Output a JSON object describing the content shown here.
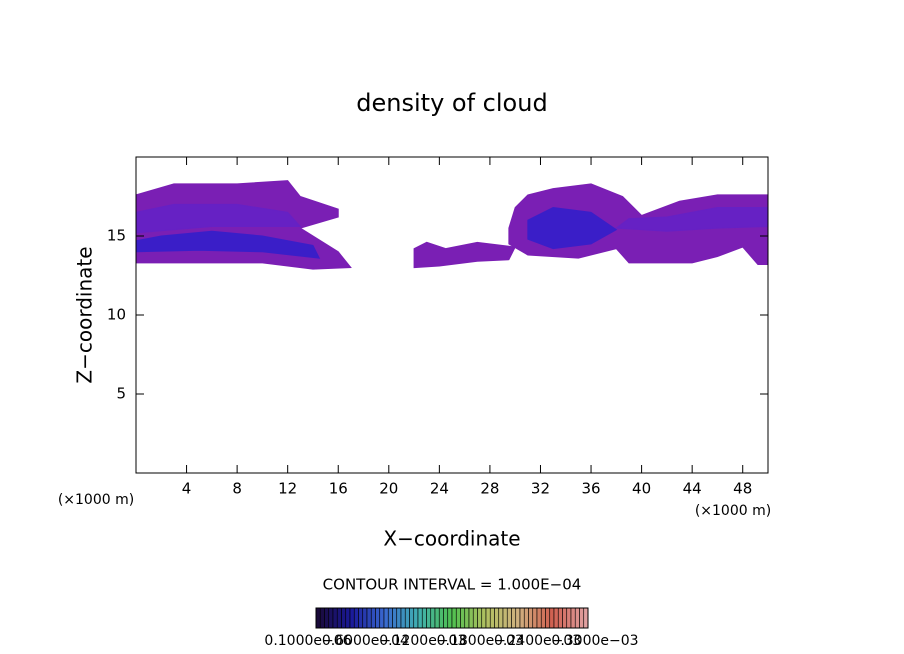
{
  "chart_data": {
    "type": "contour",
    "title": "density of cloud",
    "x_label": "X−coordinate",
    "y_label": "Z−coordinate",
    "x_unit": "(×1000 m)",
    "y_unit": "(×1000 m)",
    "xlim": [
      0,
      50
    ],
    "ylim": [
      0,
      20
    ],
    "xticks": [
      4,
      8,
      12,
      16,
      20,
      24,
      28,
      32,
      36,
      40,
      44,
      48
    ],
    "yticks": [
      5,
      10,
      15
    ],
    "contour_interval": "CONTOUR INTERVAL = 1.000E−04",
    "regions": [
      {
        "color": "#7a1fb4",
        "points": [
          [
            0,
            13.3
          ],
          [
            10,
            13.3
          ],
          [
            14,
            12.9
          ],
          [
            17,
            13
          ],
          [
            16,
            14
          ],
          [
            13,
            15.5
          ],
          [
            16,
            16.2
          ],
          [
            16,
            16.7
          ],
          [
            13,
            17.5
          ],
          [
            12,
            18.5
          ],
          [
            8,
            18.3
          ],
          [
            3,
            18.3
          ],
          [
            0,
            17.6
          ]
        ]
      },
      {
        "color": "#6621c4",
        "points": [
          [
            0,
            15.2
          ],
          [
            6,
            15.6
          ],
          [
            13,
            15.6
          ],
          [
            12,
            16.5
          ],
          [
            8,
            17
          ],
          [
            3,
            17
          ],
          [
            0,
            16.5
          ]
        ]
      },
      {
        "color": "#3a1ec8",
        "points": [
          [
            0,
            14
          ],
          [
            5,
            14.1
          ],
          [
            10,
            14
          ],
          [
            14.5,
            13.6
          ],
          [
            14,
            14.4
          ],
          [
            10,
            15
          ],
          [
            6,
            15.3
          ],
          [
            2,
            15
          ],
          [
            0,
            14.7
          ]
        ]
      },
      {
        "color": "#7a1fb4",
        "points": [
          [
            22,
            13
          ],
          [
            24,
            13.1
          ],
          [
            27,
            13.4
          ],
          [
            29.5,
            13.5
          ],
          [
            30,
            14.3
          ],
          [
            27,
            14.6
          ],
          [
            24.5,
            14.2
          ],
          [
            23,
            14.6
          ],
          [
            22,
            14.2
          ]
        ]
      },
      {
        "color": "#7a1fb4",
        "points": [
          [
            29.5,
            14.5
          ],
          [
            31,
            13.8
          ],
          [
            35,
            13.6
          ],
          [
            38,
            14.2
          ],
          [
            39,
            13.3
          ],
          [
            44,
            13.3
          ],
          [
            46,
            13.7
          ],
          [
            48,
            14.3
          ],
          [
            49.2,
            13.2
          ],
          [
            50,
            13.2
          ],
          [
            50,
            17.6
          ],
          [
            46,
            17.6
          ],
          [
            43,
            17.2
          ],
          [
            40,
            16.3
          ],
          [
            38.5,
            17.5
          ],
          [
            36,
            18.3
          ],
          [
            33,
            18
          ],
          [
            31,
            17.6
          ],
          [
            30,
            16.8
          ],
          [
            29.5,
            15.5
          ]
        ]
      },
      {
        "color": "#6621c4",
        "points": [
          [
            38,
            15.5
          ],
          [
            42,
            15.3
          ],
          [
            46,
            15.5
          ],
          [
            50,
            15.6
          ],
          [
            50,
            16.8
          ],
          [
            46,
            16.8
          ],
          [
            42,
            16.2
          ],
          [
            39,
            16.1
          ]
        ]
      },
      {
        "color": "#3a1ec8",
        "points": [
          [
            31,
            14.8
          ],
          [
            33,
            14.2
          ],
          [
            36,
            14.5
          ],
          [
            38,
            15.4
          ],
          [
            36,
            16.5
          ],
          [
            33,
            16.8
          ],
          [
            31,
            16
          ]
        ]
      }
    ],
    "colorbar": {
      "colors": [
        "#1a0a3a",
        "#1a1a9a",
        "#3a6ad0",
        "#40b0b0",
        "#50c050",
        "#b0c060",
        "#d0b080",
        "#d06050",
        "#e0a0a0"
      ],
      "labels": [
        "0.1000e−06",
        "0.6000e−04",
        "0.1200e−03",
        "0.1800e−03",
        "0.2400e−03",
        "0.3000e−03"
      ]
    }
  }
}
